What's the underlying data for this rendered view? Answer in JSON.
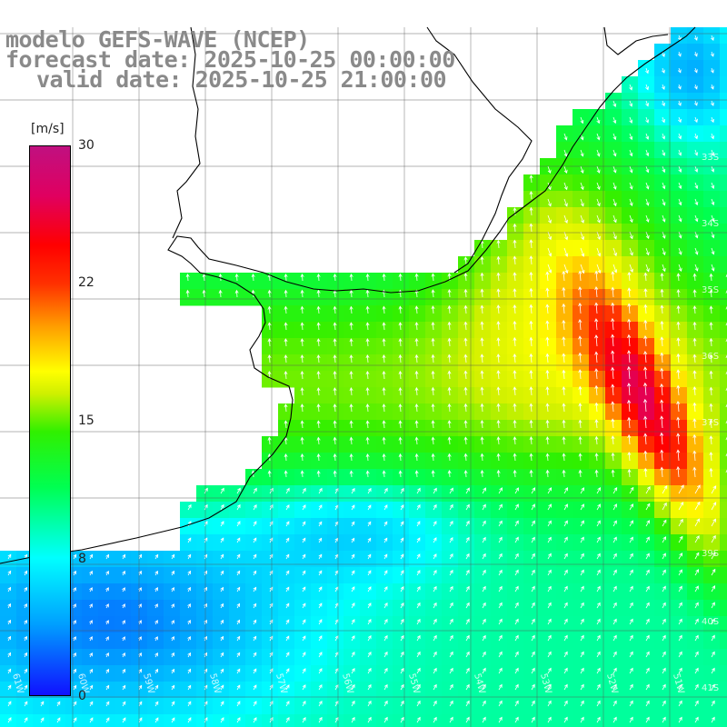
{
  "title": {
    "line1": "modelo GEFS-WAVE (NCEP)",
    "line2": "forecast date: 2025-10-25 00:00:00",
    "line3": "valid date: 2025-10-25 21:00:00"
  },
  "colorbar": {
    "unit": "[m/s]",
    "ticks": [
      "30",
      "22",
      "15",
      "8",
      "0"
    ],
    "tick_values": [
      30,
      22,
      15,
      8,
      0
    ],
    "min": 0,
    "max": 30,
    "colors": [
      "#1010ff",
      "#00a0ff",
      "#00ffff",
      "#00ff50",
      "#30f000",
      "#d0f000",
      "#ffff00",
      "#ffa000",
      "#ff3000",
      "#ff0000",
      "#e00060",
      "#c01080"
    ]
  },
  "lat_labels": [
    "33S",
    "34S",
    "35S",
    "36S",
    "37S",
    "39S",
    "40S",
    "41S"
  ],
  "lon_labels": [
    "61W",
    "60W",
    "59W",
    "58W",
    "57W",
    "56W",
    "55W",
    "54W",
    "53W",
    "52W",
    "51W"
  ],
  "field": "wind speed with direction arrows"
}
